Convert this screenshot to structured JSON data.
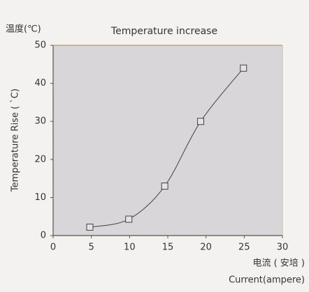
{
  "chart_data": {
    "type": "line",
    "title": "Temperature increase",
    "y_unit_label": "温度(℃)",
    "y_label": "Temperature Rise ( `C)",
    "x_label": "电流 ( 安培 )",
    "x_label_en": "Current(ampere)",
    "x": [
      4.8,
      9.9,
      14.6,
      19.3,
      24.9
    ],
    "series": [
      {
        "name": "Temperature Rise",
        "color": "#444444",
        "values": [
          2.2,
          4.3,
          13,
          30,
          44
        ]
      }
    ],
    "xlim": [
      0,
      30
    ],
    "xticks": [
      0,
      5,
      10,
      15,
      20,
      25,
      30
    ],
    "ylim": [
      0,
      50
    ],
    "yticks": [
      0,
      10,
      20,
      30,
      40,
      50
    ],
    "marker": "square",
    "smooth": true
  }
}
